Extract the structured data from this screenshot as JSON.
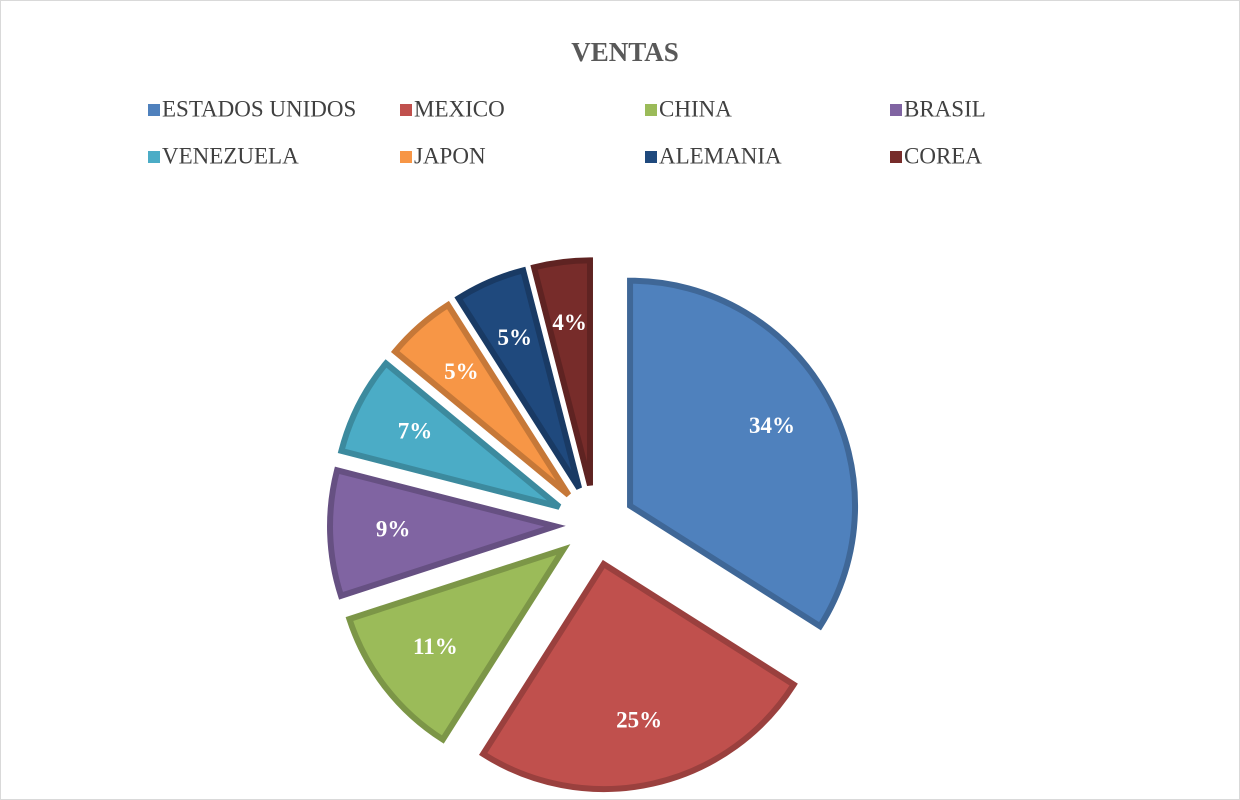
{
  "chart_data": {
    "type": "pie",
    "title": "VENTAS",
    "categories": [
      "ESTADOS UNIDOS",
      "MEXICO",
      "CHINA",
      "BRASIL",
      "VENEZUELA",
      "JAPON",
      "ALEMANIA",
      "COREA"
    ],
    "values": [
      34,
      25,
      11,
      9,
      7,
      5,
      5,
      4
    ],
    "value_labels": [
      "34%",
      "25%",
      "11%",
      "9%",
      "7%",
      "5%",
      "5%",
      "4%"
    ],
    "colors": [
      "#4f81bd",
      "#c0504d",
      "#9bbb59",
      "#8064a2",
      "#4bacc6",
      "#f79646",
      "#1f497d",
      "#772c2a"
    ],
    "legend": "top"
  }
}
